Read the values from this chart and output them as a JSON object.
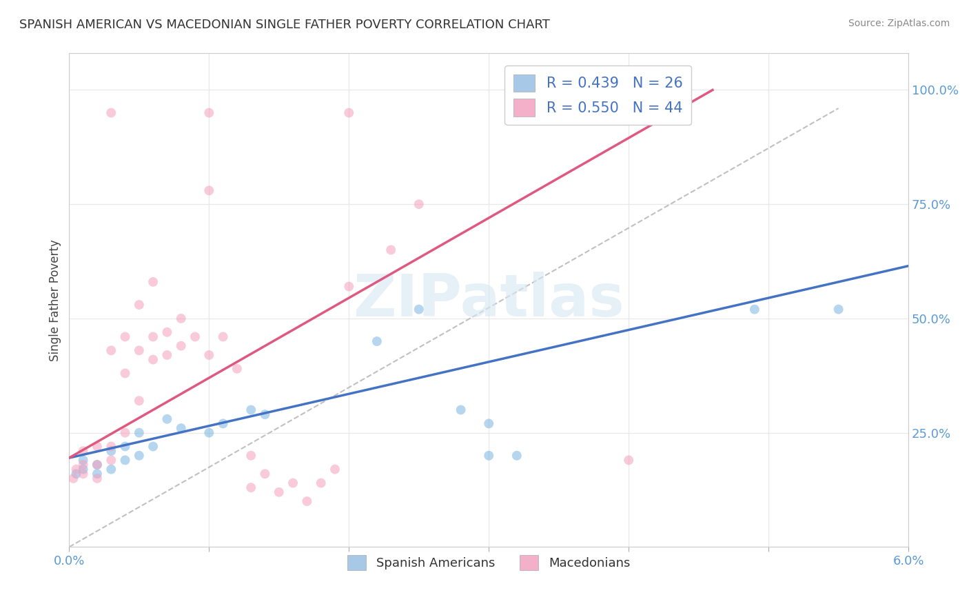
{
  "title": "SPANISH AMERICAN VS MACEDONIAN SINGLE FATHER POVERTY CORRELATION CHART",
  "source": "Source: ZipAtlas.com",
  "ylabel": "Single Father Poverty",
  "legend_entries": [
    {
      "label": "R = 0.439   N = 26",
      "color": "#a8c8e8"
    },
    {
      "label": "R = 0.550   N = 44",
      "color": "#f4b0c8"
    }
  ],
  "legend_bottom": [
    "Spanish Americans",
    "Macedonians"
  ],
  "watermark": "ZIPatlas",
  "blue_color": "#7ab4e0",
  "pink_color": "#f4a0bc",
  "line_blue": "#4472c4",
  "line_pink": "#e05880",
  "line_gray": "#c0c0c0",
  "blue_scatter": [
    [
      0.0005,
      0.16
    ],
    [
      0.001,
      0.17
    ],
    [
      0.001,
      0.19
    ],
    [
      0.002,
      0.16
    ],
    [
      0.002,
      0.18
    ],
    [
      0.003,
      0.17
    ],
    [
      0.003,
      0.21
    ],
    [
      0.004,
      0.19
    ],
    [
      0.004,
      0.22
    ],
    [
      0.005,
      0.2
    ],
    [
      0.005,
      0.25
    ],
    [
      0.006,
      0.22
    ],
    [
      0.007,
      0.28
    ],
    [
      0.008,
      0.26
    ],
    [
      0.01,
      0.25
    ],
    [
      0.011,
      0.27
    ],
    [
      0.013,
      0.3
    ],
    [
      0.014,
      0.29
    ],
    [
      0.022,
      0.45
    ],
    [
      0.025,
      0.52
    ],
    [
      0.028,
      0.3
    ],
    [
      0.03,
      0.27
    ],
    [
      0.03,
      0.2
    ],
    [
      0.032,
      0.2
    ],
    [
      0.049,
      0.52
    ],
    [
      0.055,
      0.52
    ]
  ],
  "pink_scatter": [
    [
      0.0003,
      0.15
    ],
    [
      0.0005,
      0.17
    ],
    [
      0.001,
      0.16
    ],
    [
      0.001,
      0.18
    ],
    [
      0.001,
      0.21
    ],
    [
      0.002,
      0.15
    ],
    [
      0.002,
      0.18
    ],
    [
      0.002,
      0.22
    ],
    [
      0.003,
      0.19
    ],
    [
      0.003,
      0.22
    ],
    [
      0.003,
      0.43
    ],
    [
      0.004,
      0.25
    ],
    [
      0.004,
      0.38
    ],
    [
      0.004,
      0.46
    ],
    [
      0.005,
      0.32
    ],
    [
      0.005,
      0.43
    ],
    [
      0.005,
      0.53
    ],
    [
      0.006,
      0.41
    ],
    [
      0.006,
      0.46
    ],
    [
      0.006,
      0.58
    ],
    [
      0.007,
      0.42
    ],
    [
      0.007,
      0.47
    ],
    [
      0.008,
      0.44
    ],
    [
      0.008,
      0.5
    ],
    [
      0.009,
      0.46
    ],
    [
      0.01,
      0.42
    ],
    [
      0.011,
      0.46
    ],
    [
      0.012,
      0.39
    ],
    [
      0.013,
      0.13
    ],
    [
      0.013,
      0.2
    ],
    [
      0.014,
      0.16
    ],
    [
      0.015,
      0.12
    ],
    [
      0.016,
      0.14
    ],
    [
      0.017,
      0.1
    ],
    [
      0.018,
      0.14
    ],
    [
      0.019,
      0.17
    ],
    [
      0.02,
      0.57
    ],
    [
      0.023,
      0.65
    ],
    [
      0.025,
      0.75
    ],
    [
      0.01,
      0.95
    ],
    [
      0.02,
      0.95
    ],
    [
      0.01,
      0.78
    ],
    [
      0.04,
      0.19
    ],
    [
      0.003,
      0.95
    ]
  ],
  "blue_line": [
    [
      0.0,
      0.195
    ],
    [
      0.06,
      0.615
    ]
  ],
  "pink_line": [
    [
      0.0,
      0.195
    ],
    [
      0.046,
      1.0
    ]
  ],
  "gray_line": [
    [
      0.0,
      0.0
    ],
    [
      0.055,
      0.96
    ]
  ],
  "xlim": [
    0.0,
    0.06
  ],
  "ylim": [
    0.0,
    1.08
  ],
  "grid_color": "#e8e8e8",
  "background_color": "#ffffff",
  "marker_size": 100,
  "alpha": 0.55,
  "xticks": [
    0.0,
    0.01,
    0.02,
    0.03,
    0.04,
    0.05,
    0.06
  ],
  "xticklabels": [
    "0.0%",
    "",
    "",
    "",
    "",
    "",
    "6.0%"
  ],
  "yticks": [
    0.0,
    0.25,
    0.5,
    0.75,
    1.0
  ],
  "yticklabels": [
    "",
    "25.0%",
    "50.0%",
    "75.0%",
    "100.0%"
  ]
}
